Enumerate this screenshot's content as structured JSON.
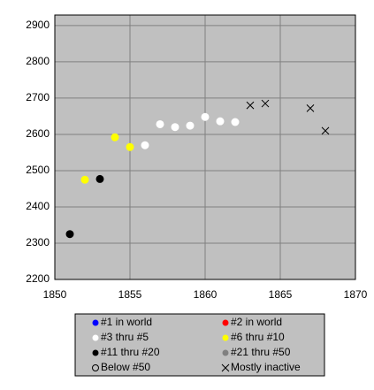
{
  "chart_data": {
    "type": "scatter",
    "xlim": [
      1850,
      1870
    ],
    "xticks": [
      1850,
      1855,
      1860,
      1865,
      1870
    ],
    "ylim": [
      2200,
      2929
    ],
    "yticks": [
      2200,
      2300,
      2400,
      2500,
      2600,
      2700,
      2800,
      2900
    ],
    "grid": true,
    "legend": "bottom",
    "series": [
      {
        "name": "#1 in world",
        "color": "#0000ff",
        "marker": "circle",
        "x": [],
        "values": []
      },
      {
        "name": "#2 in world",
        "color": "#ff0000",
        "marker": "circle",
        "x": [],
        "values": []
      },
      {
        "name": "#3 thru #5",
        "color": "#ffffff",
        "marker": "circle",
        "x": [
          1856,
          1857,
          1858,
          1859,
          1860,
          1861,
          1862
        ],
        "values": [
          2570,
          2628,
          2620,
          2624,
          2648,
          2636,
          2634
        ]
      },
      {
        "name": "#6 thru #10",
        "color": "#ffff00",
        "marker": "circle",
        "x": [
          1852,
          1854,
          1855
        ],
        "values": [
          2475,
          2592,
          2565
        ]
      },
      {
        "name": "#11 thru #20",
        "color": "#000000",
        "marker": "circle",
        "x": [
          1851,
          1853
        ],
        "values": [
          2325,
          2477
        ]
      },
      {
        "name": "#21 thru #50",
        "color": "#808080",
        "marker": "circle",
        "x": [],
        "values": []
      },
      {
        "name": "Below #50",
        "color": "#000000",
        "marker": "open-circle",
        "x": [],
        "values": []
      },
      {
        "name": "Mostly inactive",
        "color": "#000000",
        "marker": "x",
        "x": [
          1863,
          1864,
          1867,
          1868
        ],
        "values": [
          2680,
          2685,
          2672,
          2610
        ]
      }
    ]
  }
}
